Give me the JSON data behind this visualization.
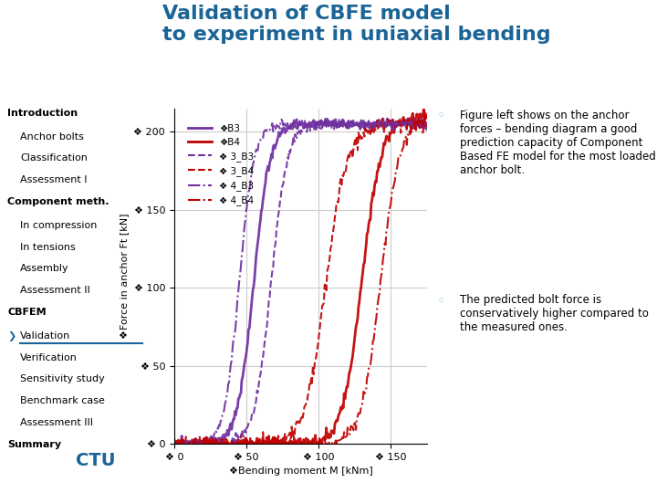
{
  "title_line1": "Validation of CBFE model",
  "title_line2": "to experiment in uniaxial bending",
  "title_color": "#1a6496",
  "background_color": "#ffffff",
  "sidebar_items": [
    {
      "text": "Introduction",
      "bold": true,
      "indent": 0
    },
    {
      "text": "Anchor bolts",
      "bold": false,
      "indent": 1
    },
    {
      "text": "Classification",
      "bold": false,
      "indent": 1
    },
    {
      "text": "Assessment I",
      "bold": false,
      "indent": 1
    },
    {
      "text": "Component meth.",
      "bold": true,
      "indent": 0
    },
    {
      "text": "In compression",
      "bold": false,
      "indent": 1
    },
    {
      "text": "In tensions",
      "bold": false,
      "indent": 1
    },
    {
      "text": "Assembly",
      "bold": false,
      "indent": 1
    },
    {
      "text": "Assessment II",
      "bold": false,
      "indent": 1
    },
    {
      "text": "CBFEM",
      "bold": true,
      "indent": 0
    },
    {
      "text": "Validation",
      "bold": false,
      "indent": 1,
      "active": true
    },
    {
      "text": "Verification",
      "bold": false,
      "indent": 1
    },
    {
      "text": "Sensitivity study",
      "bold": false,
      "indent": 1
    },
    {
      "text": "Benchmark case",
      "bold": false,
      "indent": 1
    },
    {
      "text": "Assessment III",
      "bold": false,
      "indent": 1
    },
    {
      "text": "Summary",
      "bold": true,
      "indent": 0
    }
  ],
  "xlabel": "❖Bending moment M [kNm]",
  "ylabel": "❖Force in anchor Ft [kN]",
  "xlim": [
    0,
    175
  ],
  "ylim": [
    0,
    215
  ],
  "xticks": [
    0,
    50,
    100,
    150
  ],
  "yticks": [
    0,
    50,
    100,
    150,
    200
  ],
  "xtick_labels": [
    "❖ 0",
    "❖ 50",
    "❖ 100",
    "❖ 150"
  ],
  "ytick_labels": [
    "❖ 0",
    "❖ 50",
    "❖ 100",
    "❖ 150",
    "❖ 200"
  ],
  "series": [
    {
      "key": "B3",
      "label": "❖B3",
      "color": "#7030a0",
      "linestyle": "solid",
      "lw": 2.0,
      "x_mid": 55,
      "slope": 0.18,
      "y_max": 205,
      "noise": 1.5
    },
    {
      "key": "B4",
      "label": "❖B4",
      "color": "#c00000",
      "linestyle": "solid",
      "lw": 2.0,
      "x_mid": 130,
      "slope": 0.15,
      "y_max": 210,
      "noise": 2.0
    },
    {
      "key": "3_B3",
      "label": "❖ 3_B3",
      "color": "#7030a0",
      "linestyle": "dashed",
      "lw": 1.5,
      "x_mid": 67,
      "slope": 0.18,
      "y_max": 205,
      "noise": 1.5
    },
    {
      "key": "3_B4",
      "label": "❖ 3_B4",
      "color": "#c00000",
      "linestyle": "dashed",
      "lw": 1.5,
      "x_mid": 105,
      "slope": 0.14,
      "y_max": 205,
      "noise": 2.5
    },
    {
      "key": "4_B3",
      "label": "❖ 4_B3",
      "color": "#7030a0",
      "linestyle": "dashdot",
      "lw": 1.5,
      "x_mid": 45,
      "slope": 0.2,
      "y_max": 205,
      "noise": 1.5
    },
    {
      "key": "4_B4",
      "label": "❖ 4_B4",
      "color": "#c00000",
      "linestyle": "dashdot",
      "lw": 1.5,
      "x_mid": 143,
      "slope": 0.15,
      "y_max": 210,
      "noise": 2.0
    }
  ],
  "bullet1": "Figure left shows on the anchor forces – bending diagram a good prediction capacity of Component Based FE model for the most loaded anchor bolt.",
  "bullet2": "The predicted bolt force is conservatively higher compared to the measured ones.",
  "grid_color": "#cccccc"
}
